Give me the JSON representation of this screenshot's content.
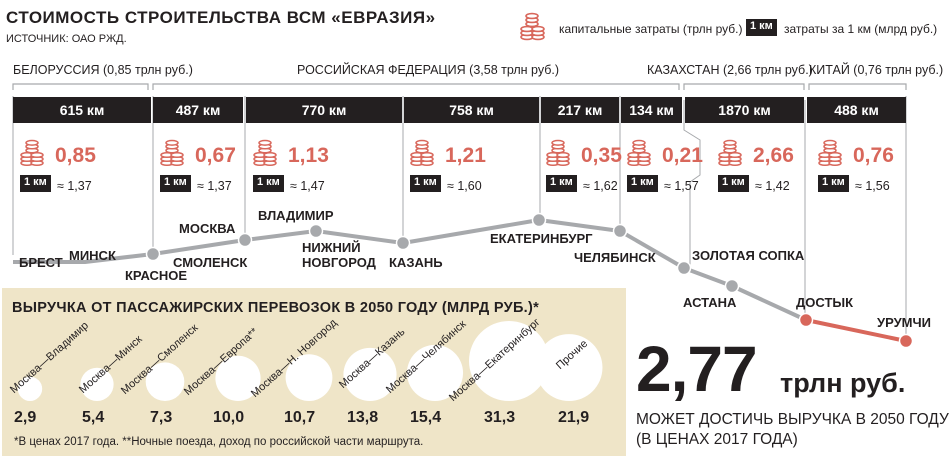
{
  "title": "СТОИМОСТЬ СТРОИТЕЛЬСТВА ВСМ «ЕВРАЗИЯ»",
  "source": "ИСТОЧНИК: ОАО РЖД.",
  "legend": {
    "capex_label": "капитальные затраты (трлн руб.)",
    "km_badge": "1 км",
    "perkm_label": "затраты за 1 км (млрд руб.)"
  },
  "colors": {
    "accent": "#d8675b",
    "dark": "#231f20",
    "panel": "#efe5c8",
    "route": "#a7a9ac"
  },
  "chart_data": [
    {
      "type": "line",
      "title": "СТОИМОСТЬ СТРОИТЕЛЬСТВА ВСМ «ЕВРАЗИЯ»",
      "regions": [
        {
          "name": "БЕЛОРУССИЯ (0,85 трлн руб.)"
        },
        {
          "name": "РОССИЙСКАЯ ФЕДЕРАЦИЯ (3,58 трлн руб.)"
        },
        {
          "name": "КАЗАХСТАН (2,66 трлн руб.)"
        },
        {
          "name": "КИТАЙ (0,76 трлн руб.)"
        }
      ],
      "segments": [
        {
          "length": "615 км",
          "capex": "0,85",
          "km": "1 км",
          "per_km": "≈ 1,37"
        },
        {
          "length": "487 км",
          "capex": "0,67",
          "km": "1 км",
          "per_km": "≈ 1,37"
        },
        {
          "length": "770 км",
          "capex": "1,13",
          "km": "1 км",
          "per_km": "≈ 1,47"
        },
        {
          "length": "758 км",
          "capex": "1,21",
          "km": "1 км",
          "per_km": "≈ 1,60"
        },
        {
          "length": "217 км",
          "capex": "0,35",
          "km": "1 км",
          "per_km": "≈ 1,62"
        },
        {
          "length": "134 км",
          "capex": "0,21",
          "km": "1 км",
          "per_km": "≈ 1,57"
        },
        {
          "length": "1870 км",
          "capex": "2,66",
          "km": "1 км",
          "per_km": "≈ 1,42"
        },
        {
          "length": "488 км",
          "capex": "0,76",
          "km": "1 км",
          "per_km": "≈ 1,56"
        }
      ],
      "cities": [
        {
          "name": "БРЕСТ"
        },
        {
          "name": "МИНСК"
        },
        {
          "name": "КРАСНОЕ"
        },
        {
          "name": "СМОЛЕНСК"
        },
        {
          "name": "МОСКВА"
        },
        {
          "name": "ВЛАДИМИР"
        },
        {
          "name": "НИЖНИЙ НОВГОРОД"
        },
        {
          "name": "КАЗАНЬ"
        },
        {
          "name": "ЕКАТЕРИНБУРГ"
        },
        {
          "name": "ЧЕЛЯБИНСК"
        },
        {
          "name": "ЗОЛОТАЯ СОПКА"
        },
        {
          "name": "АСТАНА"
        },
        {
          "name": "ДОСТЫК"
        },
        {
          "name": "УРУМЧИ"
        }
      ]
    },
    {
      "type": "bubble",
      "title": "ВЫРУЧКА ОТ ПАССАЖИРСКИХ ПЕРЕВОЗОК В 2050 ГОДУ (МЛРД РУБ.)*",
      "categories": [
        "Москва—Владимир",
        "Москва—Минск",
        "Москва—Смоленск",
        "Москва—Европа**",
        "Москва—Н. Новгород",
        "Москва—Казань",
        "Москва—Челябинск",
        "Москва—Екатеринбург",
        "Прочие"
      ],
      "labels": [
        "2,9",
        "5,4",
        "7,3",
        "10,0",
        "10,7",
        "13,8",
        "15,4",
        "31,3",
        "21,9"
      ],
      "values": [
        2.9,
        5.4,
        7.3,
        10.0,
        10.7,
        13.8,
        15.4,
        31.3,
        21.9
      ]
    }
  ],
  "revenue_footnote": "*В ценах 2017 года. **Ночные поезда, доход по российской части маршрута.",
  "total": {
    "value": "2,77",
    "unit": "трлн руб.",
    "caption_line1": "МОЖЕТ ДОСТИЧЬ ВЫРУЧКА В 2050 ГОДУ",
    "caption_line2": "(В ЦЕНАХ 2017 ГОДА)"
  }
}
